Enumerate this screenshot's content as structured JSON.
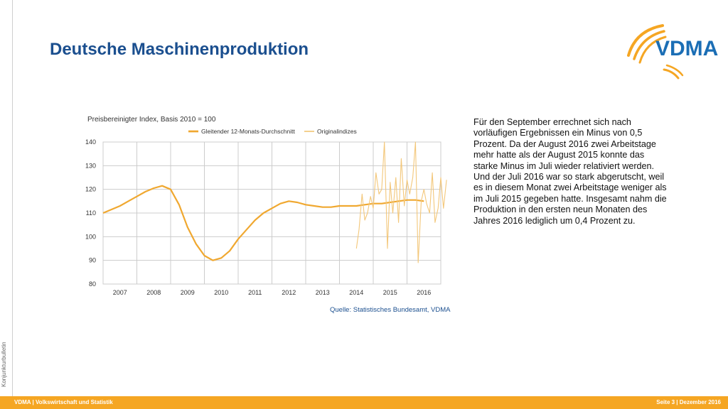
{
  "slide": {
    "title": "Deutsche Maschinenproduktion",
    "side_label": "Konjunkturbulletin",
    "logo_text": "VDMA",
    "body_text": "Für den September errechnet sich nach vorläufigen Ergebnissen ein Minus von 0,5 Prozent. Da der August 2016 zwei Arbeitstage mehr hatte als der August 2015 konnte das starke Minus im Juli wieder relativiert werden. Und der Juli 2016 war so stark abgerutscht, weil es in diesem Monat zwei Arbeitstage weniger als im Juli 2015 gegeben hatte. Insgesamt nahm die Produktion in den ersten neun Monaten des Jahres 2016 lediglich um 0,4 Prozent zu.",
    "source": "Quelle: Statistisches Bundesamt, VDMA",
    "footer_left": "VDMA   | Volkswirtschaft und Statistik",
    "footer_right": "Seite 3 |  Dezember 2016"
  },
  "colors": {
    "title": "#1b4f8f",
    "accent": "#f5a623",
    "series_avg": "#f0a830",
    "series_orig": "#f3c77a",
    "grid": "#cccccc"
  },
  "chart_data": {
    "type": "line",
    "title": "Preisbereinigter Index, Basis 2010 = 100",
    "ylim": [
      80,
      140
    ],
    "yticks": [
      80,
      90,
      100,
      110,
      120,
      130,
      140
    ],
    "xticks": [
      "2007",
      "2008",
      "2009",
      "2010",
      "2011",
      "2012",
      "2013",
      "2014",
      "2015",
      "2016"
    ],
    "x_start": 2006.5,
    "x_end": 2016.5,
    "grid": true,
    "legend_position": "top",
    "series": [
      {
        "name": "Gleitender 12-Monats-Durchschnitt",
        "x": [
          2006.5,
          2006.75,
          2007.0,
          2007.25,
          2007.5,
          2007.75,
          2008.0,
          2008.25,
          2008.5,
          2008.75,
          2009.0,
          2009.25,
          2009.5,
          2009.75,
          2010.0,
          2010.25,
          2010.5,
          2010.75,
          2011.0,
          2011.25,
          2011.5,
          2011.75,
          2012.0,
          2012.25,
          2012.5,
          2012.75,
          2013.0,
          2013.25,
          2013.5,
          2013.75,
          2014.0,
          2014.25,
          2014.5,
          2014.75,
          2015.0,
          2015.25,
          2015.5,
          2015.75,
          2016.0
        ],
        "values": [
          110,
          111.5,
          113,
          115,
          117,
          119,
          120.5,
          121.5,
          120,
          113.5,
          104,
          97,
          92,
          90,
          91,
          94,
          99,
          103,
          107,
          110,
          112,
          114,
          115,
          114.5,
          113.5,
          113,
          112.5,
          112.5,
          113,
          113,
          113,
          113.5,
          114,
          114,
          114.5,
          115,
          115.5,
          115.5,
          115
        ]
      },
      {
        "name": "Originalindizes",
        "x": [
          2014.0,
          2014.08,
          2014.17,
          2014.25,
          2014.33,
          2014.42,
          2014.5,
          2014.58,
          2014.67,
          2014.75,
          2014.83,
          2014.92,
          2015.0,
          2015.08,
          2015.17,
          2015.25,
          2015.33,
          2015.42,
          2015.5,
          2015.58,
          2015.67,
          2015.75,
          2015.83,
          2015.92,
          2016.0,
          2016.08,
          2016.17,
          2016.25,
          2016.33,
          2016.42,
          2016.5,
          2016.58,
          2016.67
        ],
        "values": [
          95,
          103,
          118,
          107,
          110,
          117,
          112,
          127,
          118,
          120,
          140,
          95,
          123,
          110,
          125,
          106,
          133,
          113,
          124,
          118,
          125,
          140,
          89,
          115,
          120,
          114,
          110,
          127,
          106,
          112,
          125,
          112,
          124
        ]
      }
    ]
  }
}
